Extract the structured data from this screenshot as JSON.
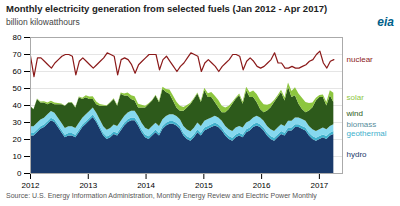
{
  "chart_data": {
    "type": "area",
    "stacked": true,
    "title": "Monthly electricity generation from selected fuels (Jan 2012 - Apr 2017)",
    "ylabel": "billion kilowatthours",
    "annotations": [
      {
        "text": "eia"
      },
      {
        "text": "Source: U.S. Energy Information Administration, Monthly Energy Review and Electric Power Monthly"
      }
    ],
    "x": [
      2012.0,
      2012.0603,
      2012.1207,
      2012.181,
      2012.2414,
      2012.3017,
      2012.3621,
      2012.4224,
      2012.4828,
      2012.5431,
      2012.6034,
      2012.6638,
      2012.7241,
      2012.7845,
      2012.8448,
      2012.9052,
      2012.9655,
      2013.0259,
      2013.0862,
      2013.1466,
      2013.2069,
      2013.2672,
      2013.3276,
      2013.3879,
      2013.4483,
      2013.5086,
      2013.569,
      2013.6293,
      2013.6897,
      2013.75,
      2013.8103,
      2013.8707,
      2013.931,
      2013.9914,
      2014.0517,
      2014.1121,
      2014.1724,
      2014.2328,
      2014.2931,
      2014.3534,
      2014.4138,
      2014.4741,
      2014.5345,
      2014.5948,
      2014.6552,
      2014.7155,
      2014.7759,
      2014.8362,
      2014.8966,
      2014.9569,
      2015.0172,
      2015.0776,
      2015.1379,
      2015.1983,
      2015.2586,
      2015.319,
      2015.3793,
      2015.4397,
      2015.5,
      2015.5603,
      2015.6207,
      2015.681,
      2015.7414,
      2015.8017,
      2015.8621,
      2015.9224,
      2015.9828,
      2016.0431,
      2016.1034,
      2016.1638,
      2016.2241,
      2016.2845,
      2016.3448,
      2016.4052,
      2016.4655,
      2016.5259,
      2016.5862,
      2016.6466,
      2016.7069,
      2016.7672,
      2016.8276,
      2016.8879,
      2016.9483,
      2017.0086,
      2017.069,
      2017.1293,
      2017.1897,
      2017.25
    ],
    "series": [
      {
        "name": "hydro",
        "type": "area",
        "color": "#1a3a6b",
        "values": [
          22,
          22,
          24,
          26,
          27,
          29,
          31,
          30,
          27,
          24,
          21,
          22,
          22,
          21,
          24,
          27,
          29,
          31,
          33,
          30,
          26,
          22,
          20,
          21,
          23,
          22,
          25,
          28,
          30,
          31,
          31,
          28,
          24,
          21,
          20,
          22,
          24,
          22,
          26,
          28,
          29,
          29,
          28,
          26,
          22,
          20,
          19,
          21,
          24,
          22,
          25,
          26,
          27,
          28,
          27,
          25,
          22,
          20,
          19,
          21,
          22,
          21,
          24,
          25,
          27,
          28,
          27,
          25,
          22,
          20,
          19,
          21,
          23,
          22,
          25,
          25,
          27,
          27,
          26,
          25,
          22,
          20,
          19,
          20,
          21,
          20,
          22,
          23
        ]
      },
      {
        "name": "geothermal",
        "type": "area",
        "color": "#40b0cc",
        "values": [
          1.5,
          1.5,
          1.5,
          1.5,
          1.5,
          1.5,
          1.5,
          1.5,
          1.5,
          1.5,
          1.5,
          1.5,
          1.5,
          1.5,
          1.5,
          1.5,
          1.5,
          1.5,
          1.5,
          1.5,
          1.5,
          1.5,
          1.5,
          1.5,
          1.6,
          1.6,
          1.6,
          1.6,
          1.6,
          1.6,
          1.6,
          1.6,
          1.6,
          1.6,
          1.6,
          1.6,
          1.6,
          1.6,
          1.6,
          1.6,
          1.6,
          1.6,
          1.6,
          1.6,
          1.6,
          1.6,
          1.6,
          1.6,
          1.7,
          1.7,
          1.7,
          1.7,
          1.7,
          1.7,
          1.7,
          1.7,
          1.7,
          1.7,
          1.7,
          1.7,
          1.7,
          1.7,
          1.7,
          1.7,
          1.7,
          1.7,
          1.7,
          1.7,
          1.7,
          1.7,
          1.7,
          1.7,
          1.7,
          1.7,
          1.7,
          1.7,
          1.7,
          1.7,
          1.7,
          1.7,
          1.7,
          1.7,
          1.7,
          1.7,
          1.7,
          1.7,
          1.7,
          1.7
        ]
      },
      {
        "name": "biomass",
        "type": "area",
        "color": "#85d8ee",
        "values": [
          4.0,
          4.0,
          4.0,
          4.0,
          4.0,
          4.0,
          4.0,
          4.0,
          4.0,
          4.0,
          4.0,
          4.0,
          4.0,
          4.0,
          4.0,
          4.0,
          4.0,
          4.0,
          4.0,
          4.0,
          4.0,
          4.0,
          4.0,
          4.0,
          4.0,
          4.0,
          4.0,
          4.0,
          4.0,
          4.0,
          4.0,
          4.0,
          4.0,
          4.0,
          4.0,
          4.0,
          4.0,
          4.0,
          4.0,
          4.0,
          4.0,
          4.0,
          4.0,
          4.0,
          4.0,
          4.0,
          4.0,
          4.0,
          4.0,
          4.0,
          4.0,
          4.0,
          4.0,
          4.0,
          4.0,
          4.0,
          4.0,
          4.0,
          4.0,
          4.0,
          4.0,
          4.0,
          4.0,
          4.0,
          4.0,
          4.0,
          4.0,
          4.0,
          4.0,
          4.0,
          4.0,
          4.0,
          4.0,
          4.0,
          4.0,
          4.0,
          4.0,
          4.0,
          4.0,
          4.0,
          4.0,
          4.0,
          4.0,
          4.0,
          4.0,
          4.0,
          4.0,
          4.0
        ]
      },
      {
        "name": "wind",
        "type": "area",
        "color": "#2d5a1b",
        "values": [
          12,
          10,
          14,
          10,
          9,
          6,
          5,
          5,
          8,
          11,
          13,
          14,
          14,
          12,
          15,
          11,
          10,
          7,
          5,
          5,
          8,
          12,
          14,
          15,
          15,
          12,
          16,
          12,
          10,
          7,
          6,
          5,
          9,
          12,
          15,
          15,
          16,
          14,
          18,
          14,
          12,
          8,
          5,
          5,
          9,
          13,
          16,
          17,
          17,
          14,
          18,
          13,
          12,
          8,
          6,
          5,
          8,
          12,
          16,
          17,
          18,
          14,
          19,
          14,
          12,
          8,
          5,
          5,
          9,
          13,
          17,
          18,
          19,
          15,
          20,
          14,
          13,
          8,
          6,
          5,
          9,
          13,
          18,
          19,
          18,
          14,
          18,
          13
        ]
      },
      {
        "name": "solar",
        "type": "area",
        "color": "#8dc63f",
        "values": [
          0.1,
          0.2,
          0.3,
          0.5,
          0.7,
          0.9,
          1.0,
          0.9,
          0.7,
          0.4,
          0.2,
          0.1,
          0.2,
          0.3,
          0.5,
          0.8,
          1.2,
          1.5,
          1.7,
          1.5,
          1.1,
          0.7,
          0.3,
          0.2,
          0.3,
          0.5,
          0.8,
          1.2,
          1.8,
          2.2,
          2.5,
          2.2,
          1.6,
          1.0,
          0.5,
          0.3,
          0.5,
          0.7,
          1.2,
          1.8,
          2.5,
          3.0,
          3.3,
          3.0,
          2.2,
          1.4,
          0.7,
          0.5,
          0.7,
          1.0,
          1.5,
          2.2,
          3.0,
          3.8,
          4.2,
          3.8,
          2.8,
          1.8,
          1.0,
          0.7,
          1.0,
          1.4,
          2.0,
          2.8,
          3.8,
          4.8,
          5.2,
          4.8,
          3.5,
          2.2,
          1.2,
          1.0,
          1.2,
          1.8,
          2.5,
          3.5,
          4.8,
          6.0,
          6.5,
          6.0,
          4.5,
          2.8,
          1.5,
          1.2,
          1.5,
          2.0,
          3.0,
          5.5
        ]
      },
      {
        "name": "nuclear",
        "type": "line",
        "color": "#8b1a1a",
        "values": [
          69,
          57,
          68,
          68,
          66,
          64,
          62,
          65,
          67,
          69,
          70,
          70,
          69,
          58,
          66,
          68,
          66,
          64,
          62,
          64,
          66,
          68,
          71,
          70,
          69,
          58,
          67,
          68,
          67,
          64,
          59,
          64,
          66,
          68,
          70,
          70,
          70,
          61,
          67,
          69,
          66,
          63,
          60,
          63,
          65,
          68,
          71,
          70,
          69,
          60,
          65,
          67,
          65,
          63,
          60,
          63,
          65,
          67,
          70,
          70,
          69,
          61,
          66,
          68,
          66,
          63,
          62,
          63,
          65,
          67,
          71,
          65,
          65,
          62,
          62,
          63,
          62,
          62,
          63,
          64,
          66,
          67,
          70,
          72,
          65,
          62,
          66,
          67
        ]
      }
    ],
    "xlim": [
      2012.0,
      2017.4
    ],
    "xticks": [
      2012,
      2013,
      2014,
      2015,
      2016,
      2017
    ],
    "ylim": [
      0,
      80
    ],
    "yticks": [
      0,
      10,
      20,
      30,
      40,
      50,
      60,
      70,
      80
    ],
    "grid": true
  }
}
